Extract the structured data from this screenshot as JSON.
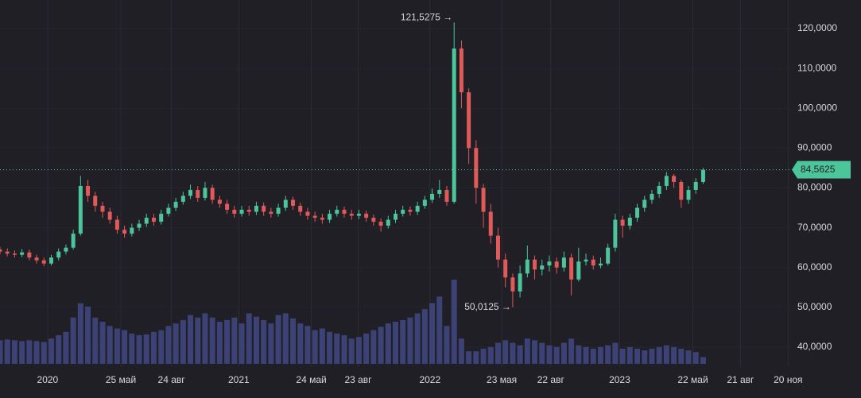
{
  "chart_data": {
    "type": "candlestick",
    "xlim": [
      0,
      108
    ],
    "xticks": [
      {
        "value": 6.5,
        "label": "2020"
      },
      {
        "value": 16.5,
        "label": "25 май"
      },
      {
        "value": 23.4,
        "label": "24 авг"
      },
      {
        "value": 32.6,
        "label": "2021"
      },
      {
        "value": 42.5,
        "label": "24 май"
      },
      {
        "value": 48.9,
        "label": "23 авг"
      },
      {
        "value": 58.7,
        "label": "2022"
      },
      {
        "value": 68.5,
        "label": "23 мая"
      },
      {
        "value": 75.2,
        "label": "22 авг"
      },
      {
        "value": 84.6,
        "label": "2023"
      },
      {
        "value": 94.6,
        "label": "22 май"
      },
      {
        "value": 101.1,
        "label": "21 авг"
      },
      {
        "value": 107.6,
        "label": "20 ноя"
      }
    ],
    "ylim": [
      35,
      125
    ],
    "yticks": [
      {
        "value": 40,
        "label": "40,0000"
      },
      {
        "value": 50,
        "label": "50,0000"
      },
      {
        "value": 60,
        "label": "60,0000"
      },
      {
        "value": 70,
        "label": "70,0000"
      },
      {
        "value": 80,
        "label": "80,0000"
      },
      {
        "value": 90,
        "label": "90,0000"
      },
      {
        "value": 100,
        "label": "100,0000"
      },
      {
        "value": 110,
        "label": "110,0000"
      },
      {
        "value": 120,
        "label": "120,0000"
      }
    ],
    "up_color": "#4cc59a",
    "down_color": "#e05a5a",
    "open": [
      64.5,
      64.0,
      63.5,
      63.2,
      63.8,
      62.5,
      61.8,
      61.0,
      62.5,
      64.0,
      65.0,
      68.5,
      80.5,
      78.0,
      75.5,
      74.0,
      72.0,
      69.5,
      68.5,
      70.0,
      71.0,
      72.5,
      71.5,
      73.5,
      75.0,
      76.5,
      78.0,
      79.5,
      77.5,
      80.0,
      77.0,
      76.0,
      74.5,
      73.5,
      74.5,
      74.0,
      75.5,
      74.0,
      73.5,
      75.0,
      77.0,
      75.5,
      74.0,
      73.0,
      72.5,
      72.0,
      73.5,
      74.5,
      73.5,
      73.0,
      73.5,
      72.5,
      71.5,
      70.5,
      72.0,
      73.5,
      74.5,
      74.0,
      75.5,
      77.0,
      78.5,
      79.5,
      76.5,
      115.0,
      104.0,
      90.0,
      80.0,
      74.0,
      68.0,
      62.0,
      57.5,
      54.0,
      58.5,
      62.0,
      59.5,
      60.5,
      61.5,
      60.0,
      62.5,
      57.0,
      61.5,
      62.0,
      60.5,
      61.0,
      65.0,
      72.0,
      70.5,
      72.5,
      75.0,
      77.0,
      78.5,
      80.5,
      83.0,
      81.5,
      77.0,
      79.5,
      81.5
    ],
    "high": [
      65.2,
      64.8,
      64.3,
      64.6,
      64.5,
      63.2,
      62.5,
      63.2,
      64.8,
      65.8,
      69.5,
      83.0,
      82.0,
      79.0,
      76.5,
      75.0,
      73.0,
      70.5,
      71.0,
      72.0,
      73.5,
      73.5,
      74.5,
      76.0,
      77.5,
      79.0,
      80.8,
      80.5,
      81.5,
      80.8,
      78.0,
      77.0,
      75.5,
      75.5,
      75.5,
      76.5,
      76.3,
      75.0,
      76.0,
      78.0,
      77.8,
      76.3,
      75.0,
      74.0,
      73.5,
      74.5,
      75.5,
      75.3,
      74.5,
      74.5,
      74.3,
      73.3,
      72.3,
      73.0,
      74.5,
      75.5,
      75.3,
      76.5,
      78.0,
      79.8,
      82.0,
      80.5,
      121.5275,
      117.0,
      105.0,
      92.0,
      81.0,
      76.0,
      70.0,
      63.5,
      58.5,
      60.5,
      65.5,
      63.0,
      62.0,
      63.0,
      62.5,
      64.0,
      63.5,
      65.0,
      63.5,
      63.0,
      62.5,
      66.0,
      73.5,
      73.0,
      73.5,
      76.0,
      78.0,
      79.5,
      81.5,
      84.0,
      83.5,
      82.0,
      80.5,
      82.5,
      85.0
    ],
    "low": [
      63.3,
      62.8,
      62.5,
      62.6,
      61.8,
      61.0,
      60.3,
      60.5,
      61.8,
      63.3,
      64.5,
      68.0,
      76.5,
      74.0,
      72.5,
      71.0,
      68.5,
      67.5,
      67.8,
      69.2,
      70.2,
      70.5,
      70.8,
      72.8,
      74.2,
      75.8,
      77.2,
      76.5,
      76.8,
      76.0,
      75.0,
      73.5,
      72.5,
      72.8,
      73.0,
      73.2,
      73.0,
      72.5,
      72.8,
      74.2,
      74.5,
      73.0,
      72.0,
      71.5,
      71.0,
      71.2,
      72.8,
      72.5,
      72.0,
      72.2,
      71.5,
      70.5,
      69.0,
      69.8,
      71.2,
      72.8,
      73.0,
      73.2,
      74.8,
      76.2,
      77.5,
      75.5,
      76.0,
      100.0,
      86.0,
      76.0,
      70.0,
      66.0,
      60.0,
      55.0,
      50.0125,
      52.5,
      57.5,
      57.0,
      58.0,
      59.0,
      58.5,
      59.0,
      53.0,
      56.5,
      60.5,
      59.5,
      59.8,
      60.5,
      64.0,
      67.5,
      69.5,
      71.5,
      74.0,
      76.0,
      77.5,
      79.5,
      80.0,
      75.0,
      76.0,
      78.5,
      81.0
    ],
    "close": [
      64.0,
      63.5,
      63.2,
      63.8,
      62.5,
      61.8,
      61.0,
      62.5,
      64.0,
      65.0,
      68.5,
      80.5,
      78.0,
      75.5,
      74.0,
      72.0,
      69.5,
      68.5,
      70.0,
      71.0,
      72.5,
      71.5,
      73.5,
      75.0,
      76.5,
      78.0,
      79.5,
      77.5,
      80.0,
      77.0,
      76.0,
      74.5,
      73.5,
      74.5,
      74.0,
      75.5,
      74.0,
      73.5,
      75.0,
      77.0,
      75.5,
      74.0,
      73.0,
      72.5,
      72.0,
      73.5,
      74.5,
      73.5,
      73.0,
      73.5,
      72.5,
      71.5,
      70.5,
      72.0,
      73.5,
      74.5,
      74.0,
      75.5,
      77.0,
      78.5,
      79.5,
      76.5,
      115.0,
      104.0,
      90.0,
      80.0,
      74.0,
      68.0,
      62.0,
      57.5,
      54.0,
      58.5,
      62.0,
      59.5,
      60.5,
      61.5,
      60.0,
      62.5,
      57.0,
      61.5,
      62.0,
      60.5,
      61.0,
      65.0,
      72.0,
      70.5,
      72.5,
      75.0,
      77.0,
      78.5,
      80.5,
      83.0,
      81.5,
      77.0,
      79.5,
      81.5,
      84.5625
    ],
    "volume": {
      "color": "#3c4275",
      "ylim": [
        0,
        100
      ],
      "values": [
        28,
        29,
        28,
        27,
        28,
        27,
        26,
        30,
        34,
        38,
        55,
        72,
        68,
        55,
        50,
        45,
        42,
        40,
        36,
        34,
        35,
        38,
        40,
        45,
        48,
        52,
        58,
        55,
        60,
        55,
        50,
        52,
        55,
        48,
        60,
        56,
        52,
        48,
        58,
        60,
        54,
        48,
        45,
        40,
        42,
        38,
        36,
        34,
        30,
        32,
        36,
        40,
        44,
        48,
        50,
        52,
        55,
        60,
        65,
        72,
        80,
        45,
        100,
        30,
        15,
        15,
        18,
        20,
        25,
        28,
        25,
        22,
        30,
        28,
        25,
        22,
        20,
        25,
        30,
        22,
        20,
        18,
        20,
        22,
        25,
        18,
        20,
        18,
        16,
        18,
        20,
        22,
        20,
        18,
        16,
        14,
        8
      ]
    },
    "max_label": "121,5275 →",
    "min_label": "50,0125 →",
    "last_price": {
      "value": 84.5625,
      "label": "84,5625"
    }
  }
}
